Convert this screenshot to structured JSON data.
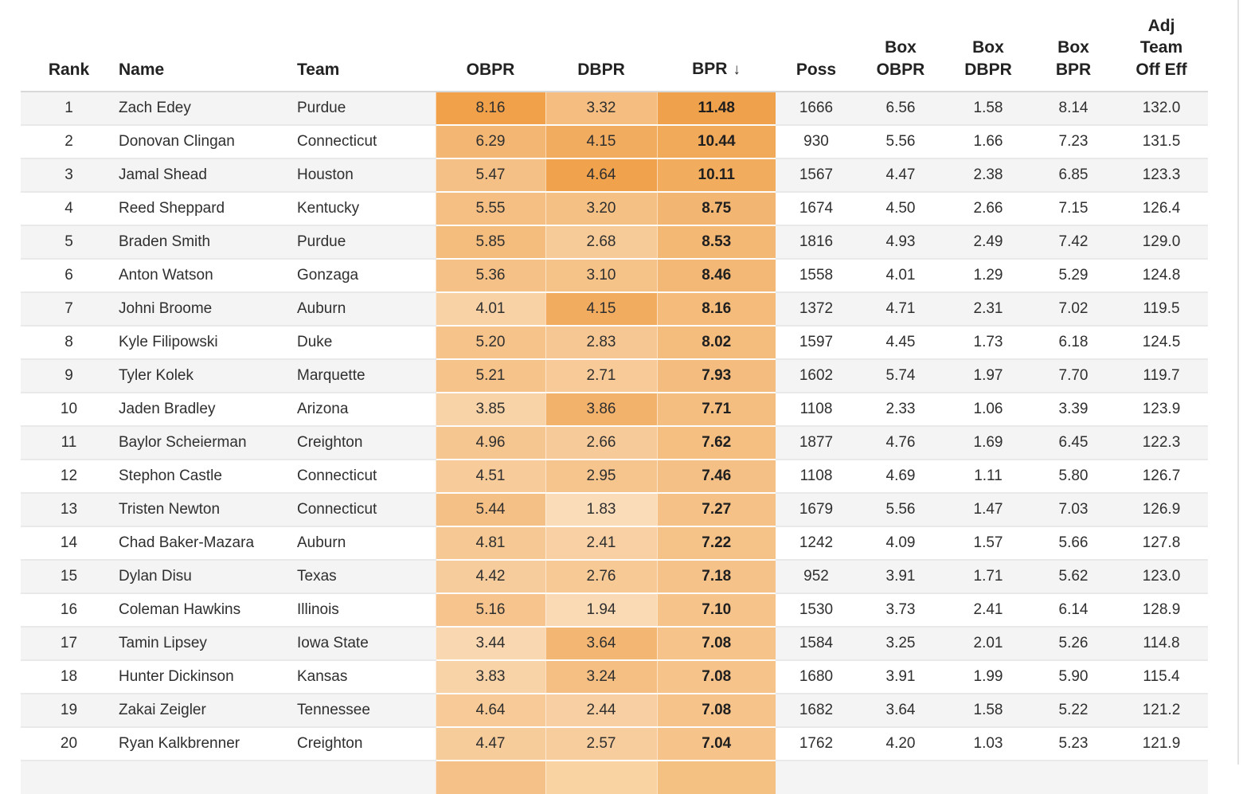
{
  "table": {
    "sort_arrow": "↓",
    "columns": [
      {
        "key": "rank",
        "label": "Rank",
        "align": "center",
        "type": "plain"
      },
      {
        "key": "name",
        "label": "Name",
        "align": "left",
        "type": "plain"
      },
      {
        "key": "team",
        "label": "Team",
        "align": "left",
        "type": "plain"
      },
      {
        "key": "obpr",
        "label": "OBPR",
        "align": "center",
        "type": "heat"
      },
      {
        "key": "dbpr",
        "label": "DBPR",
        "align": "center",
        "type": "heat"
      },
      {
        "key": "bpr",
        "label": "BPR",
        "align": "center",
        "type": "heat",
        "bold": true,
        "sorted": "desc"
      },
      {
        "key": "poss",
        "label": "Poss",
        "align": "center",
        "type": "plain"
      },
      {
        "key": "box_obpr",
        "label": "Box\nOBPR",
        "align": "center",
        "type": "plain"
      },
      {
        "key": "box_dbpr",
        "label": "Box\nDBPR",
        "align": "center",
        "type": "plain"
      },
      {
        "key": "box_bpr",
        "label": "Box\nBPR",
        "align": "center",
        "type": "plain"
      },
      {
        "key": "adj_team_off_eff",
        "label": "Adj\nTeam\nOff Eff",
        "align": "center",
        "type": "plain"
      }
    ],
    "rows": [
      {
        "rank": "1",
        "name": "Zach Edey",
        "team": "Purdue",
        "obpr": "8.16",
        "dbpr": "3.32",
        "bpr": "11.48",
        "poss": "1666",
        "box_obpr": "6.56",
        "box_dbpr": "1.58",
        "box_bpr": "8.14",
        "adj_team_off_eff": "132.0"
      },
      {
        "rank": "2",
        "name": "Donovan Clingan",
        "team": "Connecticut",
        "obpr": "6.29",
        "dbpr": "4.15",
        "bpr": "10.44",
        "poss": "930",
        "box_obpr": "5.56",
        "box_dbpr": "1.66",
        "box_bpr": "7.23",
        "adj_team_off_eff": "131.5"
      },
      {
        "rank": "3",
        "name": "Jamal Shead",
        "team": "Houston",
        "obpr": "5.47",
        "dbpr": "4.64",
        "bpr": "10.11",
        "poss": "1567",
        "box_obpr": "4.47",
        "box_dbpr": "2.38",
        "box_bpr": "6.85",
        "adj_team_off_eff": "123.3"
      },
      {
        "rank": "4",
        "name": "Reed Sheppard",
        "team": "Kentucky",
        "obpr": "5.55",
        "dbpr": "3.20",
        "bpr": "8.75",
        "poss": "1674",
        "box_obpr": "4.50",
        "box_dbpr": "2.66",
        "box_bpr": "7.15",
        "adj_team_off_eff": "126.4"
      },
      {
        "rank": "5",
        "name": "Braden Smith",
        "team": "Purdue",
        "obpr": "5.85",
        "dbpr": "2.68",
        "bpr": "8.53",
        "poss": "1816",
        "box_obpr": "4.93",
        "box_dbpr": "2.49",
        "box_bpr": "7.42",
        "adj_team_off_eff": "129.0"
      },
      {
        "rank": "6",
        "name": "Anton Watson",
        "team": "Gonzaga",
        "obpr": "5.36",
        "dbpr": "3.10",
        "bpr": "8.46",
        "poss": "1558",
        "box_obpr": "4.01",
        "box_dbpr": "1.29",
        "box_bpr": "5.29",
        "adj_team_off_eff": "124.8"
      },
      {
        "rank": "7",
        "name": "Johni Broome",
        "team": "Auburn",
        "obpr": "4.01",
        "dbpr": "4.15",
        "bpr": "8.16",
        "poss": "1372",
        "box_obpr": "4.71",
        "box_dbpr": "2.31",
        "box_bpr": "7.02",
        "adj_team_off_eff": "119.5"
      },
      {
        "rank": "8",
        "name": "Kyle Filipowski",
        "team": "Duke",
        "obpr": "5.20",
        "dbpr": "2.83",
        "bpr": "8.02",
        "poss": "1597",
        "box_obpr": "4.45",
        "box_dbpr": "1.73",
        "box_bpr": "6.18",
        "adj_team_off_eff": "124.5"
      },
      {
        "rank": "9",
        "name": "Tyler Kolek",
        "team": "Marquette",
        "obpr": "5.21",
        "dbpr": "2.71",
        "bpr": "7.93",
        "poss": "1602",
        "box_obpr": "5.74",
        "box_dbpr": "1.97",
        "box_bpr": "7.70",
        "adj_team_off_eff": "119.7"
      },
      {
        "rank": "10",
        "name": "Jaden Bradley",
        "team": "Arizona",
        "obpr": "3.85",
        "dbpr": "3.86",
        "bpr": "7.71",
        "poss": "1108",
        "box_obpr": "2.33",
        "box_dbpr": "1.06",
        "box_bpr": "3.39",
        "adj_team_off_eff": "123.9"
      },
      {
        "rank": "11",
        "name": "Baylor Scheierman",
        "team": "Creighton",
        "obpr": "4.96",
        "dbpr": "2.66",
        "bpr": "7.62",
        "poss": "1877",
        "box_obpr": "4.76",
        "box_dbpr": "1.69",
        "box_bpr": "6.45",
        "adj_team_off_eff": "122.3"
      },
      {
        "rank": "12",
        "name": "Stephon Castle",
        "team": "Connecticut",
        "obpr": "4.51",
        "dbpr": "2.95",
        "bpr": "7.46",
        "poss": "1108",
        "box_obpr": "4.69",
        "box_dbpr": "1.11",
        "box_bpr": "5.80",
        "adj_team_off_eff": "126.7"
      },
      {
        "rank": "13",
        "name": "Tristen Newton",
        "team": "Connecticut",
        "obpr": "5.44",
        "dbpr": "1.83",
        "bpr": "7.27",
        "poss": "1679",
        "box_obpr": "5.56",
        "box_dbpr": "1.47",
        "box_bpr": "7.03",
        "adj_team_off_eff": "126.9"
      },
      {
        "rank": "14",
        "name": "Chad Baker-Mazara",
        "team": "Auburn",
        "obpr": "4.81",
        "dbpr": "2.41",
        "bpr": "7.22",
        "poss": "1242",
        "box_obpr": "4.09",
        "box_dbpr": "1.57",
        "box_bpr": "5.66",
        "adj_team_off_eff": "127.8"
      },
      {
        "rank": "15",
        "name": "Dylan Disu",
        "team": "Texas",
        "obpr": "4.42",
        "dbpr": "2.76",
        "bpr": "7.18",
        "poss": "952",
        "box_obpr": "3.91",
        "box_dbpr": "1.71",
        "box_bpr": "5.62",
        "adj_team_off_eff": "123.0"
      },
      {
        "rank": "16",
        "name": "Coleman Hawkins",
        "team": "Illinois",
        "obpr": "5.16",
        "dbpr": "1.94",
        "bpr": "7.10",
        "poss": "1530",
        "box_obpr": "3.73",
        "box_dbpr": "2.41",
        "box_bpr": "6.14",
        "adj_team_off_eff": "128.9"
      },
      {
        "rank": "17",
        "name": "Tamin Lipsey",
        "team": "Iowa State",
        "obpr": "3.44",
        "dbpr": "3.64",
        "bpr": "7.08",
        "poss": "1584",
        "box_obpr": "3.25",
        "box_dbpr": "2.01",
        "box_bpr": "5.26",
        "adj_team_off_eff": "114.8"
      },
      {
        "rank": "18",
        "name": "Hunter Dickinson",
        "team": "Kansas",
        "obpr": "3.83",
        "dbpr": "3.24",
        "bpr": "7.08",
        "poss": "1680",
        "box_obpr": "3.91",
        "box_dbpr": "1.99",
        "box_bpr": "5.90",
        "adj_team_off_eff": "115.4"
      },
      {
        "rank": "19",
        "name": "Zakai Zeigler",
        "team": "Tennessee",
        "obpr": "4.64",
        "dbpr": "2.44",
        "bpr": "7.08",
        "poss": "1682",
        "box_obpr": "3.64",
        "box_dbpr": "1.58",
        "box_bpr": "5.22",
        "adj_team_off_eff": "121.2"
      },
      {
        "rank": "20",
        "name": "Ryan Kalkbrenner",
        "team": "Creighton",
        "obpr": "4.47",
        "dbpr": "2.57",
        "bpr": "7.04",
        "poss": "1762",
        "box_obpr": "4.20",
        "box_dbpr": "1.03",
        "box_bpr": "5.23",
        "adj_team_off_eff": "121.9"
      }
    ],
    "partial_next_row_visible": true
  },
  "heatmap": {
    "light": "#fdeedb",
    "dark": "#ef9d43",
    "domains": {
      "obpr": [
        1.5,
        8.5
      ],
      "dbpr": [
        0.95,
        4.9
      ],
      "bpr": [
        1.5,
        12.0
      ]
    }
  },
  "colors": {
    "page_bg": "#ffffff",
    "row_alt_bg": "#f4f4f4",
    "row_separator": "#e9e9e9",
    "header_separator": "#d8d8d8",
    "header_text": "#222222",
    "body_text": "#2f2f2f",
    "right_edge_line": "#e2e2e2",
    "partial_obpr": "#f6c189",
    "partial_dbpr": "#f9d3a2",
    "partial_bpr": "#f5c183"
  }
}
